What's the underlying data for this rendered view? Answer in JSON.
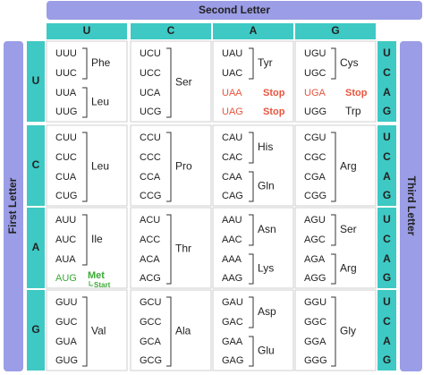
{
  "header": {
    "second_letter": "Second Letter",
    "first_letter": "First Letter",
    "third_letter": "Third Letter"
  },
  "second_bases": [
    "U",
    "C",
    "A",
    "G"
  ],
  "first_bases": [
    "U",
    "C",
    "A",
    "G"
  ],
  "third_bases": [
    "U",
    "C",
    "A",
    "G"
  ],
  "rows": [
    {
      "cells": [
        {
          "codons": [
            "UUU",
            "UUC",
            "UUA",
            "UUG"
          ],
          "groups": [
            {
              "label": "Phe",
              "codons": [
                "UUU",
                "UUC"
              ]
            },
            {
              "label": "Leu",
              "codons": [
                "UUA",
                "UUG"
              ]
            }
          ]
        },
        {
          "codons": [
            "UCU",
            "UCC",
            "UCA",
            "UCG"
          ],
          "groups": [
            {
              "label": "Ser",
              "codons": [
                "UCU",
                "UCC",
                "UCA",
                "UCG"
              ]
            }
          ]
        },
        {
          "codons": [
            "UAU",
            "UAC",
            "UAA",
            "UAG"
          ],
          "groups": [
            {
              "label": "Tyr",
              "codons": [
                "UAU",
                "UAC"
              ]
            },
            {
              "label": "Stop",
              "codons": [
                "UAA"
              ],
              "color": "#e8553e"
            },
            {
              "label": "Stop",
              "codons": [
                "UAG"
              ],
              "color": "#e8553e"
            }
          ]
        },
        {
          "codons": [
            "UGU",
            "UGC",
            "UGA",
            "UGG"
          ],
          "groups": [
            {
              "label": "Cys",
              "codons": [
                "UGU",
                "UGC"
              ]
            },
            {
              "label": "Stop",
              "codons": [
                "UGA"
              ],
              "color": "#e8553e"
            },
            {
              "label": "Trp",
              "codons": [
                "UGG"
              ]
            }
          ]
        }
      ]
    },
    {
      "cells": [
        {
          "codons": [
            "CUU",
            "CUC",
            "CUA",
            "CUG"
          ],
          "groups": [
            {
              "label": "Leu",
              "codons": [
                "CUU",
                "CUC",
                "CUA",
                "CUG"
              ]
            }
          ]
        },
        {
          "codons": [
            "CCU",
            "CCC",
            "CCA",
            "CCG"
          ],
          "groups": [
            {
              "label": "Pro",
              "codons": [
                "CCU",
                "CCC",
                "CCA",
                "CCG"
              ]
            }
          ]
        },
        {
          "codons": [
            "CAU",
            "CAC",
            "CAA",
            "CAG"
          ],
          "groups": [
            {
              "label": "His",
              "codons": [
                "CAU",
                "CAC"
              ]
            },
            {
              "label": "Gln",
              "codons": [
                "CAA",
                "CAG"
              ]
            }
          ]
        },
        {
          "codons": [
            "CGU",
            "CGC",
            "CGA",
            "CGG"
          ],
          "groups": [
            {
              "label": "Arg",
              "codons": [
                "CGU",
                "CGC",
                "CGA",
                "CGG"
              ]
            }
          ]
        }
      ]
    },
    {
      "cells": [
        {
          "codons": [
            "AUU",
            "AUC",
            "AUA",
            "AUG"
          ],
          "groups": [
            {
              "label": "Ile",
              "codons": [
                "AUU",
                "AUC",
                "AUA"
              ]
            },
            {
              "label": "Met",
              "note": "Start",
              "codons": [
                "AUG"
              ],
              "color": "#3aaa35"
            }
          ]
        },
        {
          "codons": [
            "ACU",
            "ACC",
            "ACA",
            "ACG"
          ],
          "groups": [
            {
              "label": "Thr",
              "codons": [
                "ACU",
                "ACC",
                "ACA",
                "ACG"
              ]
            }
          ]
        },
        {
          "codons": [
            "AAU",
            "AAC",
            "AAA",
            "AAG"
          ],
          "groups": [
            {
              "label": "Asn",
              "codons": [
                "AAU",
                "AAC"
              ]
            },
            {
              "label": "Lys",
              "codons": [
                "AAA",
                "AAG"
              ]
            }
          ]
        },
        {
          "codons": [
            "AGU",
            "AGC",
            "AGA",
            "AGG"
          ],
          "groups": [
            {
              "label": "Ser",
              "codons": [
                "AGU",
                "AGC"
              ]
            },
            {
              "label": "Arg",
              "codons": [
                "AGA",
                "AGG"
              ]
            }
          ]
        }
      ]
    },
    {
      "cells": [
        {
          "codons": [
            "GUU",
            "GUC",
            "GUA",
            "GUG"
          ],
          "groups": [
            {
              "label": "Val",
              "codons": [
                "GUU",
                "GUC",
                "GUA",
                "GUG"
              ]
            }
          ]
        },
        {
          "codons": [
            "GCU",
            "GCC",
            "GCA",
            "GCG"
          ],
          "groups": [
            {
              "label": "Ala",
              "codons": [
                "GCU",
                "GCC",
                "GCA",
                "GCG"
              ]
            }
          ]
        },
        {
          "codons": [
            "GAU",
            "GAC",
            "GAA",
            "GAG"
          ],
          "groups": [
            {
              "label": "Asp",
              "codons": [
                "GAU",
                "GAC"
              ]
            },
            {
              "label": "Glu",
              "codons": [
                "GAA",
                "GAG"
              ]
            }
          ]
        },
        {
          "codons": [
            "GGU",
            "GGC",
            "GGA",
            "GGG"
          ],
          "groups": [
            {
              "label": "Gly",
              "codons": [
                "GGU",
                "GGC",
                "GGA",
                "GGG"
              ]
            }
          ]
        }
      ]
    }
  ]
}
